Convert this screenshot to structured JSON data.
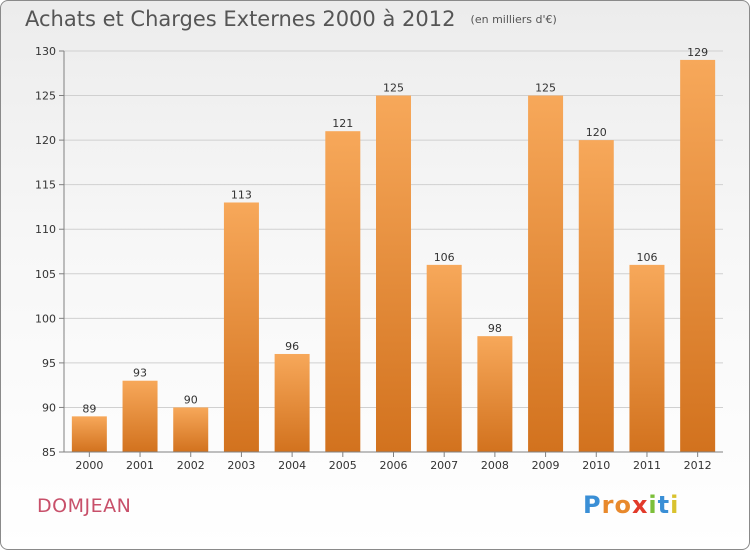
{
  "header": {
    "title": "Achats et Charges Externes 2000 à 2012",
    "subtitle": "(en milliers d'€)"
  },
  "footer": {
    "commune": "DOMJEAN",
    "logo_text": "Proxiti",
    "logo_colors": [
      "#3a8fd6",
      "#e8892c",
      "#e8892c",
      "#e23a2a",
      "#7cbf3a",
      "#3a8fd6",
      "#d9c22e"
    ]
  },
  "colors": {
    "bar_light": "#f7a85a",
    "bar_dark": "#d2721e",
    "axis": "#808080",
    "grid": "#d0d0d0",
    "text": "#333333"
  },
  "chart_data": {
    "type": "bar",
    "categories": [
      "2000",
      "2001",
      "2002",
      "2003",
      "2004",
      "2005",
      "2006",
      "2007",
      "2008",
      "2009",
      "2010",
      "2011",
      "2012"
    ],
    "values": [
      89,
      93,
      90,
      113,
      96,
      121,
      125,
      106,
      98,
      125,
      120,
      106,
      129
    ],
    "ylim": [
      85,
      130
    ],
    "yticks": [
      85,
      90,
      95,
      100,
      105,
      110,
      115,
      120,
      125,
      130
    ],
    "grid": "horizontal",
    "data_labels": true
  }
}
